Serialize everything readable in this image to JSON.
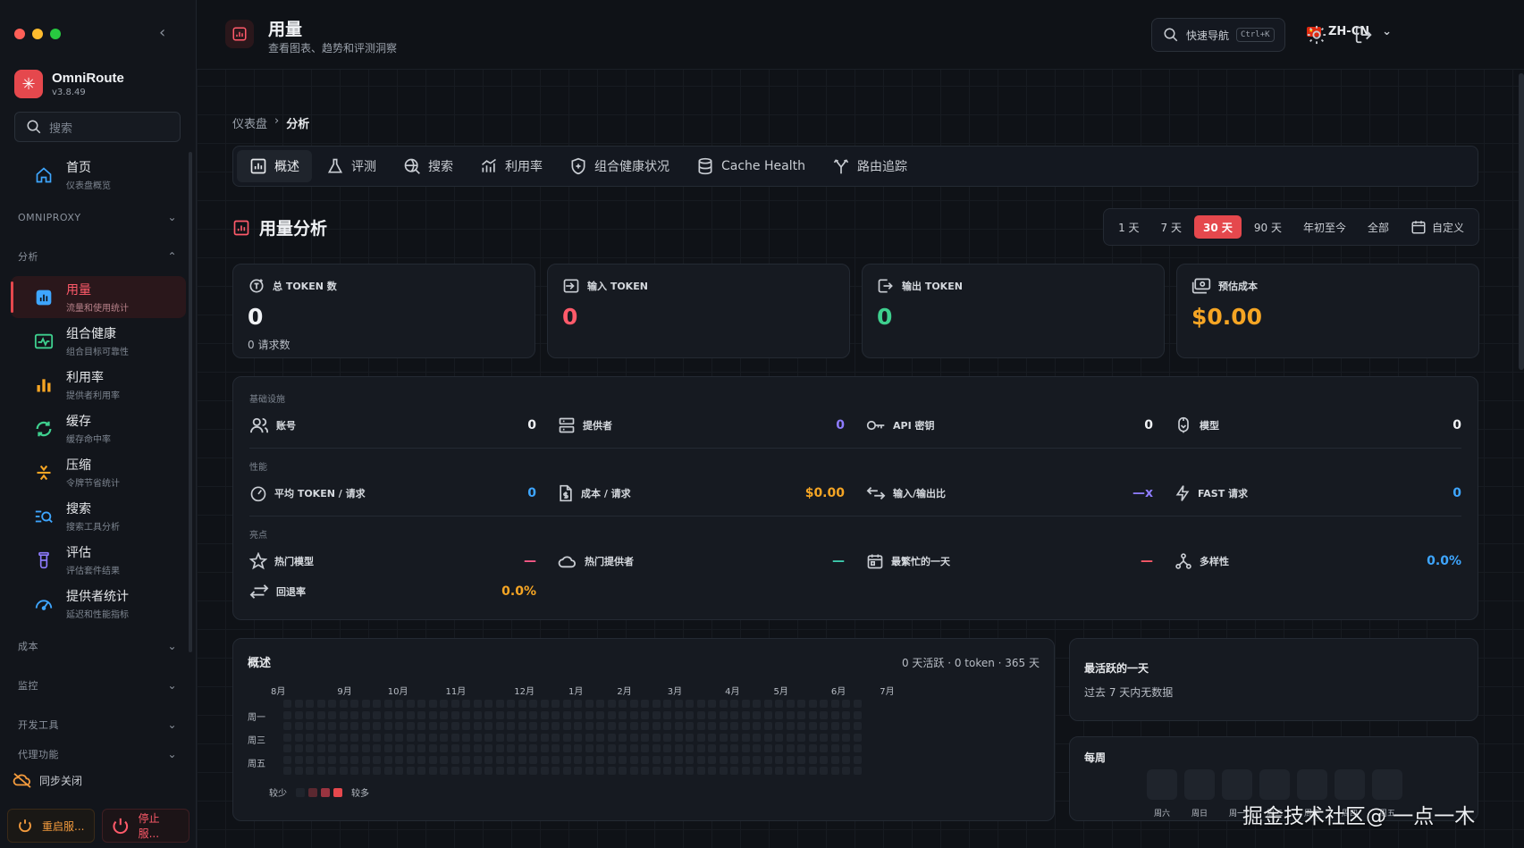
{
  "app": {
    "name": "OmniRoute",
    "version": "v3.8.49"
  },
  "sidebar": {
    "search_placeholder": "搜索",
    "home": {
      "label": "首页",
      "sub": "仪表盘概览"
    },
    "sections": {
      "omniproxy": "OMNIPROXY",
      "analysis": "分析",
      "cost": "成本",
      "monitor": "监控",
      "devtools": "开发工具",
      "proxy": "代理功能"
    },
    "items": [
      {
        "label": "用量",
        "sub": "流量和使用统计",
        "icon": "chart-icon",
        "color": "#3ea6ff"
      },
      {
        "label": "组合健康",
        "sub": "组合目标可靠性",
        "icon": "health-icon",
        "color": "#3ecf8e"
      },
      {
        "label": "利用率",
        "sub": "提供者利用率",
        "icon": "bar-chart-icon",
        "color": "#f5a524"
      },
      {
        "label": "缓存",
        "sub": "缓存命中率",
        "icon": "refresh-icon",
        "color": "#3ecf8e"
      },
      {
        "label": "压缩",
        "sub": "令牌节省统计",
        "icon": "compress-icon",
        "color": "#f5a524"
      },
      {
        "label": "搜索",
        "sub": "搜索工具分析",
        "icon": "search-list-icon",
        "color": "#3ea6ff"
      },
      {
        "label": "评估",
        "sub": "评估套件结果",
        "icon": "flask-icon",
        "color": "#8e7cff"
      },
      {
        "label": "提供者统计",
        "sub": "延迟和性能指标",
        "icon": "gauge-icon",
        "color": "#3ea6ff"
      }
    ],
    "sync_label": "同步关闭",
    "restart_label": "重启服...",
    "stop_label": "停止服..."
  },
  "header": {
    "title": "用量",
    "subtitle": "查看图表、趋势和评测洞察",
    "quick_nav": "快速导航",
    "shortcut": "Ctrl+K",
    "language": "ZH-CN"
  },
  "breadcrumb": {
    "parent": "仪表盘",
    "current": "分析"
  },
  "tabs": [
    {
      "label": "概述",
      "icon": "overview-icon"
    },
    {
      "label": "评测",
      "icon": "flask-icon"
    },
    {
      "label": "搜索",
      "icon": "search-globe-icon"
    },
    {
      "label": "利用率",
      "icon": "trend-icon"
    },
    {
      "label": "组合健康状况",
      "icon": "shield-icon"
    },
    {
      "label": "Cache Health",
      "icon": "database-icon"
    },
    {
      "label": "路由追踪",
      "icon": "route-icon"
    }
  ],
  "section": {
    "title": "用量分析"
  },
  "ranges": [
    "1 天",
    "7 天",
    "30 天",
    "90 天",
    "年初至今",
    "全部",
    "自定义"
  ],
  "active_range": "30 天",
  "cards": [
    {
      "label": "总 TOKEN 数",
      "value": "0",
      "sub": "0 请求数",
      "color": "#f0f2f5",
      "icon": "token-icon"
    },
    {
      "label": "输入 TOKEN",
      "value": "0",
      "sub": "",
      "color": "#ff5a6a",
      "icon": "input-icon"
    },
    {
      "label": "输出 TOKEN",
      "value": "0",
      "sub": "",
      "color": "#3ecf8e",
      "icon": "output-icon"
    },
    {
      "label": "预估成本",
      "value": "$0.00",
      "sub": "",
      "color": "#f5a524",
      "icon": "money-icon"
    }
  ],
  "stats": {
    "infra_label": "基础设施",
    "perf_label": "性能",
    "highlights_label": "亮点",
    "infra": [
      {
        "label": "账号",
        "value": "0",
        "color": "#f0f2f5",
        "icon": "users-icon"
      },
      {
        "label": "提供者",
        "value": "0",
        "color": "#8e7cff",
        "icon": "server-icon"
      },
      {
        "label": "API 密钥",
        "value": "0",
        "color": "#f0f2f5",
        "icon": "key-icon"
      },
      {
        "label": "模型",
        "value": "0",
        "color": "#f0f2f5",
        "icon": "model-icon"
      }
    ],
    "perf": [
      {
        "label": "平均 TOKEN / 请求",
        "value": "0",
        "color": "#3ea6ff",
        "icon": "speed-icon"
      },
      {
        "label": "成本 / 请求",
        "value": "$0.00",
        "color": "#f5a524",
        "icon": "doc-dollar-icon"
      },
      {
        "label": "输入/输出比",
        "value": "—x",
        "color": "#8e7cff",
        "icon": "ratio-icon"
      },
      {
        "label": "FAST 请求",
        "value": "0",
        "color": "#3ea6ff",
        "icon": "bolt-icon"
      }
    ],
    "highlights": [
      {
        "label": "热门模型",
        "value": "—",
        "color": "#ff5a8a",
        "icon": "star-icon"
      },
      {
        "label": "热门提供者",
        "value": "—",
        "color": "#3ecfb0",
        "icon": "cloud-icon"
      },
      {
        "label": "最繁忙的一天",
        "value": "—",
        "color": "#ff5a6a",
        "icon": "calendar-icon"
      },
      {
        "label": "多样性",
        "value": "0.0%",
        "color": "#3ea6ff",
        "icon": "diversity-icon"
      }
    ],
    "fallback": {
      "label": "回退率",
      "value": "0.0%",
      "color": "#f5a524",
      "icon": "swap-icon"
    }
  },
  "overview": {
    "title": "概述",
    "meta": "0 天活跃 · 0 token · 365 天",
    "months": [
      "8月",
      "9月",
      "10月",
      "11月",
      "12月",
      "1月",
      "2月",
      "3月",
      "4月",
      "5月",
      "6月",
      "7月"
    ],
    "days": [
      "周一",
      "周三",
      "周五"
    ],
    "legend_less": "较少",
    "legend_more": "较多",
    "legend_colors": [
      "#2a1d22",
      "#5a2830",
      "#9a3440",
      "#e5484d"
    ]
  },
  "busiest": {
    "title": "最活跃的一天",
    "text": "过去 7 天内无数据"
  },
  "weekly": {
    "title": "每周",
    "days": [
      "周六",
      "周日",
      "周一",
      "周二",
      "周三",
      "周四",
      "周五"
    ]
  },
  "watermark": "掘金技术社区@ 一点一木"
}
